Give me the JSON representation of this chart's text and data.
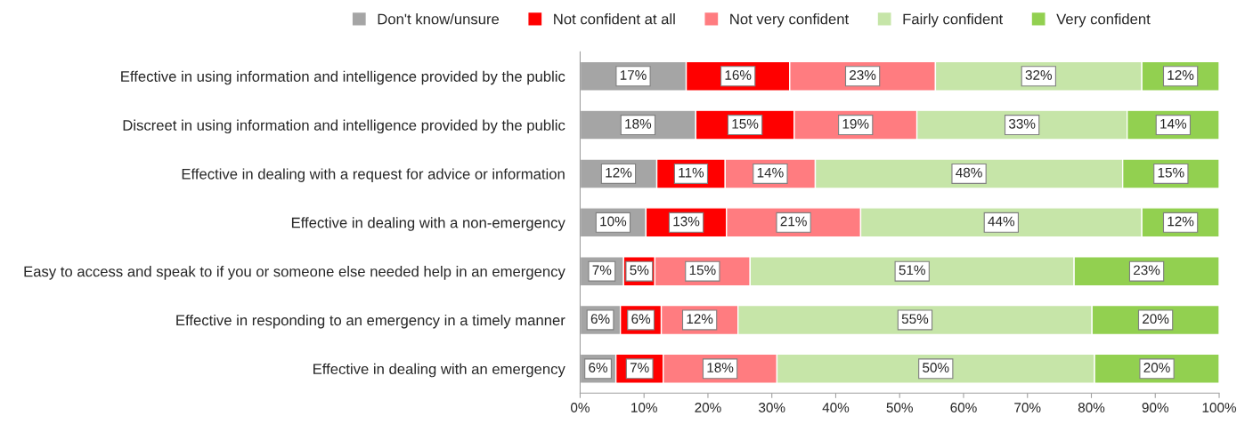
{
  "chart_data": {
    "type": "bar",
    "orientation": "horizontal",
    "stacked": true,
    "categories": [
      "Effective in using information and intelligence provided by the public",
      "Discreet in using information and intelligence provided by the public",
      "Effective in dealing with a request for advice or information",
      "Effective in dealing with a non-emergency",
      "Easy to access and speak to if you or someone else needed help in an emergency",
      "Effective in responding to an emergency in a timely manner",
      "Effective in dealing with an emergency"
    ],
    "series": [
      {
        "name": "Don't know/unsure",
        "color": "#a5a5a5",
        "values": [
          16.6,
          18.1,
          12.0,
          10.3,
          6.8,
          6.3,
          5.6
        ],
        "value_labels": [
          "17%",
          "18%",
          "12%",
          "10%",
          "7%",
          "6%",
          "6%"
        ]
      },
      {
        "name": "Not confident at all",
        "color": "#ff0000",
        "values": [
          16.2,
          15.4,
          10.7,
          12.6,
          4.9,
          6.4,
          7.4
        ],
        "value_labels": [
          "16%",
          "15%",
          "11%",
          "13%",
          "5%",
          "6%",
          "7%"
        ]
      },
      {
        "name": "Not very confident",
        "color": "#ff7c80",
        "values": [
          22.8,
          19.2,
          14.1,
          21.0,
          14.9,
          12.0,
          17.8
        ],
        "value_labels": [
          "23%",
          "19%",
          "14%",
          "21%",
          "15%",
          "12%",
          "18%"
        ]
      },
      {
        "name": "Fairly confident",
        "color": "#c6e5a8",
        "values": [
          32.3,
          32.9,
          48.1,
          44.0,
          50.7,
          55.4,
          49.7
        ],
        "value_labels": [
          "32%",
          "33%",
          "48%",
          "44%",
          "51%",
          "55%",
          "50%"
        ]
      },
      {
        "name": "Very confident",
        "color": "#92d050",
        "values": [
          12.1,
          14.4,
          15.1,
          12.1,
          22.7,
          19.9,
          19.5
        ],
        "value_labels": [
          "12%",
          "14%",
          "15%",
          "12%",
          "23%",
          "20%",
          "20%"
        ]
      }
    ],
    "xlim": [
      0,
      100
    ],
    "xticks": [
      {
        "value": 0,
        "label": "0%"
      },
      {
        "value": 10,
        "label": "10%"
      },
      {
        "value": 20,
        "label": "20%"
      },
      {
        "value": 30,
        "label": "30%"
      },
      {
        "value": 40,
        "label": "40%"
      },
      {
        "value": 50,
        "label": "50%"
      },
      {
        "value": 60,
        "label": "60%"
      },
      {
        "value": 70,
        "label": "70%"
      },
      {
        "value": 80,
        "label": "80%"
      },
      {
        "value": 90,
        "label": "90%"
      },
      {
        "value": 100,
        "label": "100%"
      }
    ],
    "legend": "top",
    "grid": false
  }
}
